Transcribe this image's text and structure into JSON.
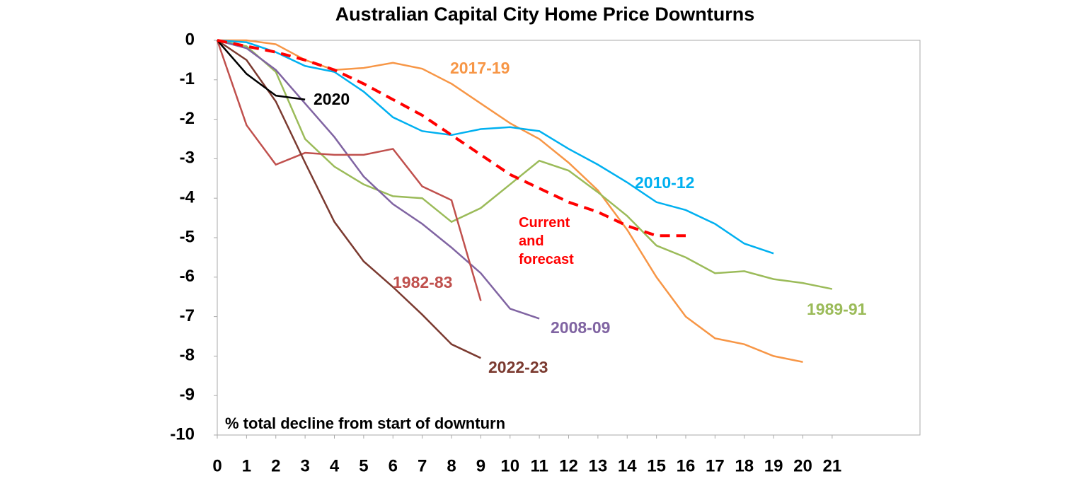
{
  "chart_data": {
    "type": "line",
    "title": "Australian Capital City Home Price Downturns",
    "annotation": "% total decline from start of downturn",
    "xlim": [
      0,
      24
    ],
    "xticks": [
      0,
      1,
      2,
      3,
      4,
      5,
      6,
      7,
      8,
      9,
      10,
      11,
      12,
      13,
      14,
      15,
      16,
      17,
      18,
      19,
      20,
      21
    ],
    "ylim": [
      -10,
      0
    ],
    "yticks": [
      0,
      -1,
      -2,
      -3,
      -4,
      -5,
      -6,
      -7,
      -8,
      -9,
      -10
    ],
    "x": [
      0,
      1,
      2,
      3,
      4,
      5,
      6,
      7,
      8,
      9,
      10,
      11,
      12,
      13,
      14,
      15,
      16,
      17,
      18,
      19,
      20,
      21
    ],
    "series": [
      {
        "name": "2017-19",
        "color": "#f79646",
        "values": [
          0,
          0,
          -0.1,
          -0.5,
          -0.75,
          -0.7,
          -0.57,
          -0.72,
          -1.1,
          -1.6,
          -2.1,
          -2.5,
          -3.1,
          -3.8,
          -4.8,
          -6.0,
          -7.0,
          -7.55,
          -7.7,
          -8.0,
          -8.15,
          null
        ]
      },
      {
        "name": "2010-12",
        "color": "#00b0f0",
        "values": [
          0,
          -0.05,
          -0.3,
          -0.65,
          -0.8,
          -1.3,
          -1.95,
          -2.3,
          -2.4,
          -2.25,
          -2.2,
          -2.3,
          -2.75,
          -3.15,
          -3.6,
          -4.1,
          -4.3,
          -4.65,
          -5.15,
          -5.4,
          null,
          null
        ]
      },
      {
        "name": "1989-91",
        "color": "#9bbb59",
        "values": [
          0,
          -0.15,
          -0.8,
          -2.5,
          -3.2,
          -3.65,
          -3.95,
          -4.0,
          -4.6,
          -4.25,
          -3.65,
          -3.05,
          -3.3,
          -3.85,
          -4.45,
          -5.2,
          -5.5,
          -5.9,
          -5.85,
          -6.05,
          -6.15,
          -6.3
        ]
      },
      {
        "name": "2008-09",
        "color": "#8064a2",
        "values": [
          0,
          -0.2,
          -0.75,
          -1.6,
          -2.45,
          -3.45,
          -4.15,
          -4.65,
          -5.25,
          -5.9,
          -6.8,
          -7.05,
          null,
          null,
          null,
          null,
          null,
          null,
          null,
          null,
          null,
          null
        ]
      },
      {
        "name": "1982-83",
        "color": "#c0504d",
        "values": [
          0,
          -2.15,
          -3.15,
          -2.85,
          -2.9,
          -2.9,
          -2.75,
          -3.7,
          -4.05,
          -6.6,
          null,
          null,
          null,
          null,
          null,
          null,
          null,
          null,
          null,
          null,
          null,
          null
        ]
      },
      {
        "name": "2022-23",
        "color": "#7b3a30",
        "values": [
          0,
          -0.5,
          -1.55,
          -3.1,
          -4.6,
          -5.6,
          -6.25,
          -6.95,
          -7.7,
          -8.05,
          null,
          null,
          null,
          null,
          null,
          null,
          null,
          null,
          null,
          null,
          null,
          null
        ]
      },
      {
        "name": "2020",
        "color": "#000000",
        "values": [
          0,
          -0.85,
          -1.4,
          -1.5,
          null,
          null,
          null,
          null,
          null,
          null,
          null,
          null,
          null,
          null,
          null,
          null,
          null,
          null,
          null,
          null,
          null,
          null
        ]
      },
      {
        "name": "Current and forecast",
        "color": "#ff0000",
        "dashed": true,
        "values": [
          0,
          -0.15,
          -0.3,
          -0.5,
          -0.75,
          -1.1,
          -1.5,
          -1.9,
          -2.4,
          -2.9,
          -3.4,
          -3.75,
          -4.1,
          -4.35,
          -4.7,
          -4.95,
          -4.95,
          null,
          null,
          null,
          null,
          null
        ]
      }
    ]
  }
}
